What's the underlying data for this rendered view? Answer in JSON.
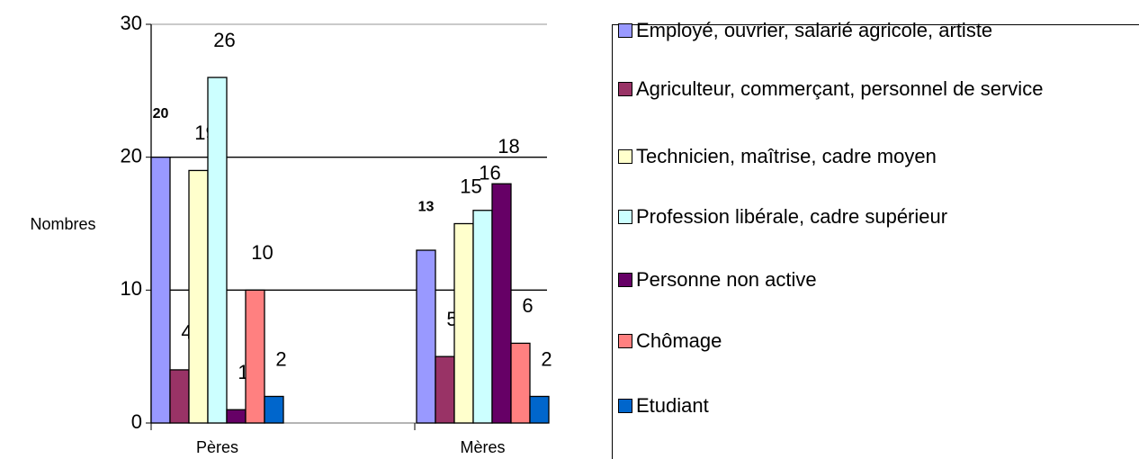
{
  "chart_data": {
    "type": "bar",
    "y_label": "Nombres",
    "categories": [
      "Pères",
      "Mères"
    ],
    "series": [
      {
        "name": "Employé, ouvrier, salarié agricole, artiste",
        "color": "#9999ff",
        "values": [
          20,
          13
        ]
      },
      {
        "name": "Agriculteur, commerçant, personnel de service",
        "color": "#993366",
        "values": [
          4,
          5
        ]
      },
      {
        "name": "Technicien, maîtrise, cadre moyen",
        "color": "#ffffcc",
        "values": [
          19,
          15
        ]
      },
      {
        "name": "Profession libérale, cadre supérieur",
        "color": "#ccffff",
        "values": [
          26,
          16
        ]
      },
      {
        "name": "Personne non active",
        "color": "#660066",
        "values": [
          1,
          18
        ]
      },
      {
        "name": "Chômage",
        "color": "#ff8080",
        "values": [
          10,
          6
        ]
      },
      {
        "name": "Etudiant",
        "color": "#0066cc",
        "values": [
          2,
          2
        ]
      }
    ],
    "ylim": [
      0,
      30
    ],
    "yticks": [
      0,
      10,
      20,
      30
    ],
    "grid": true
  }
}
